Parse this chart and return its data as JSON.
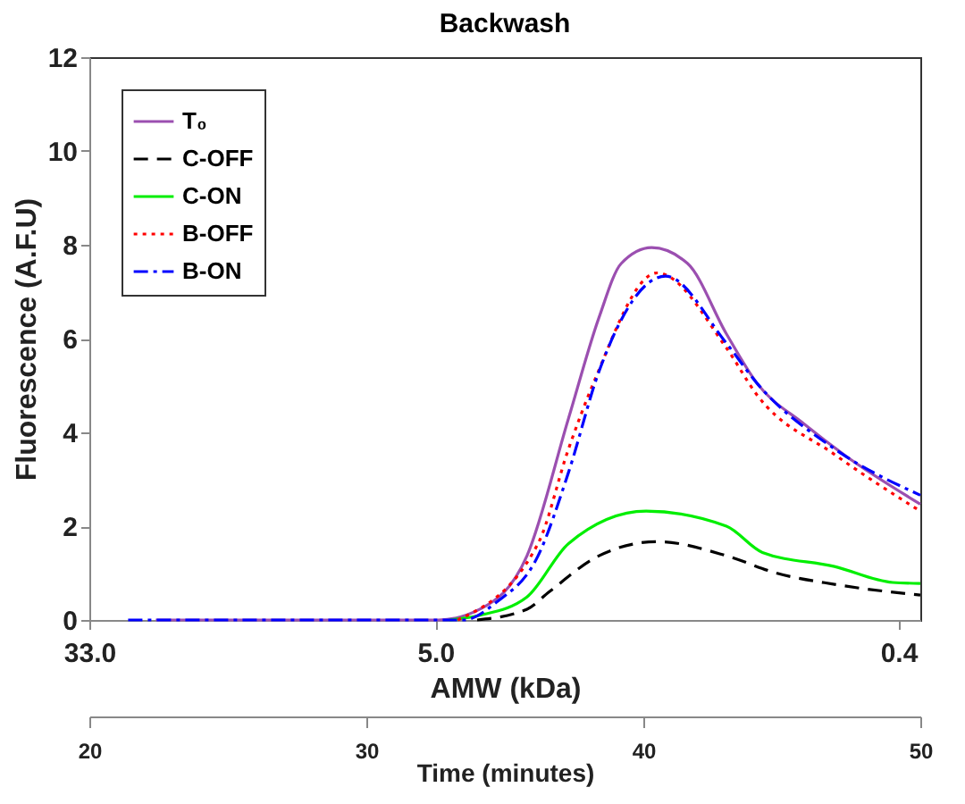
{
  "chart_data": {
    "type": "line",
    "title": "Backwash",
    "x2label": "AMW (kDa)",
    "ylabel": "Fluorescence (A.F.U)",
    "xlabel": "Time (minutes)",
    "x2lim": [
      33.0,
      0.355
    ],
    "x2ticks": [
      {
        "value": 33,
        "label": "33.0"
      },
      {
        "value": 5,
        "label": "5.0"
      },
      0.4
    ],
    "log": "x2",
    "xlim": [
      20,
      50
    ],
    "xticks": [
      20,
      30,
      40,
      50
    ],
    "ylim": [
      0,
      12
    ],
    "yticks": [
      0,
      2,
      4,
      6,
      8,
      10,
      12
    ],
    "grid": false,
    "legend": "top left",
    "series": [
      {
        "name": "T₀",
        "color": "#9b4fb0",
        "line_style": "solid",
        "x": [
          22.4,
          25.2,
          32.6,
          34.1,
          35.8,
          37.3,
          38.4,
          39.2,
          40.3,
          41.6,
          43.0,
          44.1,
          45.8,
          47.3,
          50
        ],
        "values": [
          0,
          0,
          0,
          0.23,
          1.37,
          4.3,
          6.45,
          7.6,
          7.94,
          7.6,
          6.1,
          5.05,
          4.18,
          3.5,
          2.47
        ]
      },
      {
        "name": "C-OFF",
        "color": "#000000",
        "line_style": "dashed",
        "x": [
          34.0,
          35.8,
          36.6,
          38.4,
          40.5,
          43.0,
          44.8,
          46.9,
          50
        ],
        "values": [
          0,
          0.23,
          0.6,
          1.37,
          1.67,
          1.37,
          1.0,
          0.76,
          0.53
        ]
      },
      {
        "name": "C-ON",
        "color": "#00ee00",
        "line_style": "solid",
        "x": [
          33.0,
          34.1,
          35.8,
          37.3,
          40.1,
          43.0,
          44.3,
          46.9,
          49.0,
          50
        ],
        "values": [
          0,
          0.1,
          0.49,
          1.63,
          2.32,
          2.0,
          1.44,
          1.14,
          0.8,
          0.78
        ]
      },
      {
        "name": "B-OFF",
        "color": "#ff0000",
        "line_style": "dotted",
        "x": [
          33.3,
          36.2,
          37.3,
          38.2,
          40.5,
          43.0,
          44.1,
          46.9,
          50
        ],
        "values": [
          0,
          1.63,
          3.65,
          5.05,
          7.4,
          5.8,
          4.8,
          3.53,
          2.32
        ]
      },
      {
        "name": "B-ON",
        "color": "#0000ff",
        "line_style": "dashdot",
        "x": [
          21.4,
          25.2,
          33.5,
          34.7,
          36.2,
          37.3,
          38.4,
          40.8,
          43.0,
          44.1,
          46.9,
          50
        ],
        "values": [
          0,
          0,
          0,
          0.38,
          1.37,
          3.15,
          5.3,
          7.33,
          5.9,
          5.05,
          3.65,
          2.66
        ]
      }
    ]
  }
}
